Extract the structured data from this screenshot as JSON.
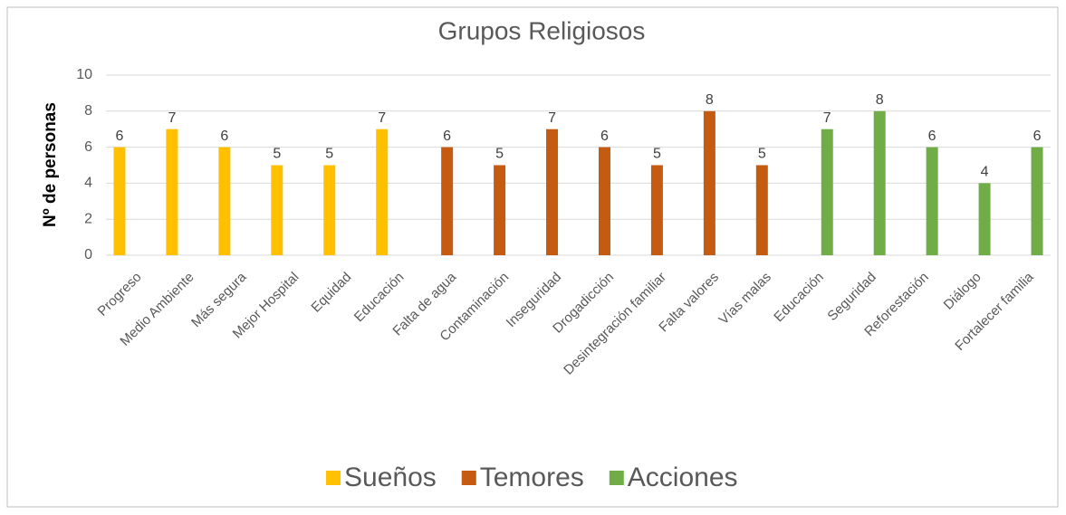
{
  "chart_data": {
    "type": "bar",
    "title": "Grupos Religiosos",
    "y_label": "Nº de personas",
    "categories": [
      "Progreso",
      "Medio Ambiente",
      "Más segura",
      "Mejor Hospital",
      "Equidad",
      "Educación",
      "Falta de agua",
      "Contaminación",
      "Inseguridad",
      "Drogadicción",
      "Desintegración familiar",
      "Falta valores",
      "Vías malas",
      "Educación",
      "Seguridad",
      "Reforestación",
      "Diálogo",
      "Fortalecer familia"
    ],
    "series": [
      {
        "name": "Sueños",
        "color": "#FFC000",
        "values": [
          6,
          7,
          6,
          5,
          5,
          7,
          null,
          null,
          null,
          null,
          null,
          null,
          null,
          null,
          null,
          null,
          null,
          null
        ]
      },
      {
        "name": "Temores",
        "color": "#C55A11",
        "values": [
          null,
          null,
          null,
          null,
          null,
          null,
          6,
          5,
          7,
          6,
          5,
          8,
          5,
          null,
          null,
          null,
          null,
          null
        ]
      },
      {
        "name": "Acciones",
        "color": "#70AD47",
        "values": [
          null,
          null,
          null,
          null,
          null,
          null,
          null,
          null,
          null,
          null,
          null,
          null,
          null,
          7,
          8,
          6,
          4,
          6
        ]
      }
    ],
    "ylim": [
      0,
      10
    ],
    "yticks": [
      0,
      2,
      4,
      6,
      8,
      10
    ],
    "grid": true,
    "legend": "bottom"
  }
}
